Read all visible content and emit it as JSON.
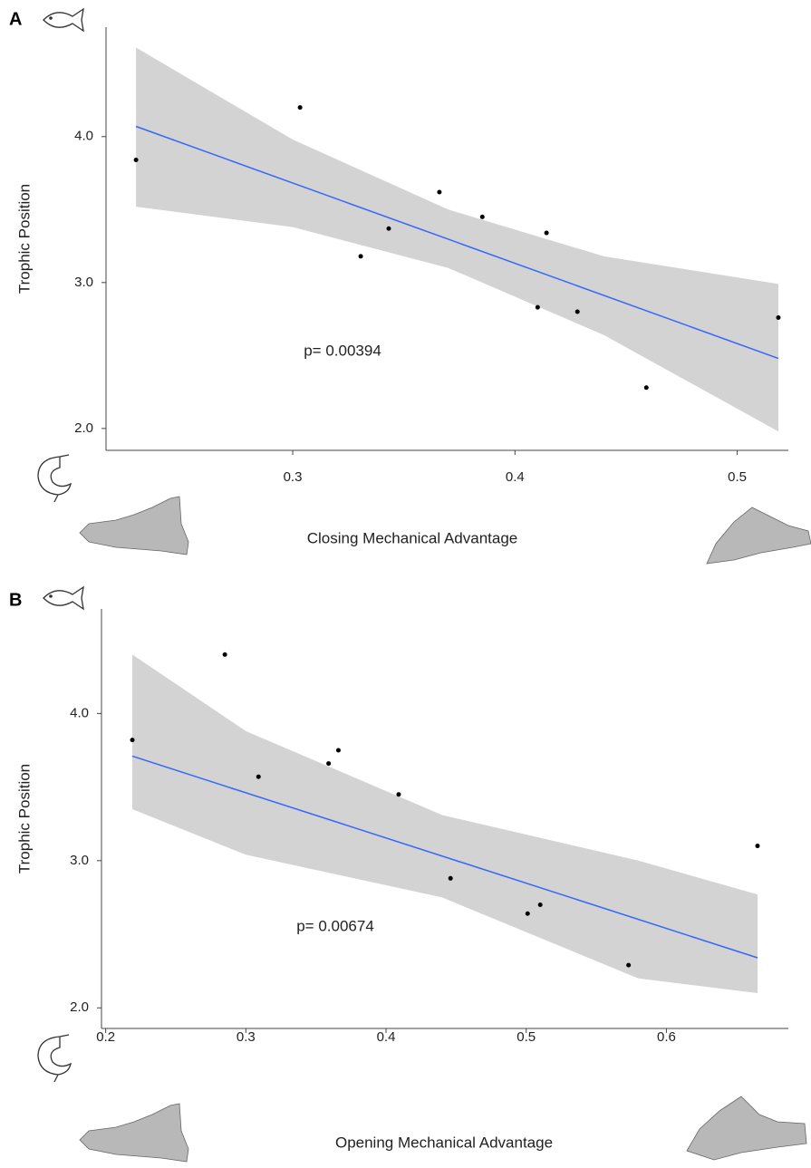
{
  "chart_data": [
    {
      "type": "scatter",
      "panel": "A",
      "x_label": "Closing Mechanical Advantage",
      "y_label": "Trophic Position",
      "annotation": "p= 0.00394",
      "x": [
        0.2295,
        0.3033,
        0.3306,
        0.3432,
        0.366,
        0.3853,
        0.4142,
        0.4102,
        0.4281,
        0.4591,
        0.5185
      ],
      "values": [
        3.84,
        4.2,
        3.18,
        3.37,
        3.62,
        3.45,
        3.34,
        2.83,
        2.8,
        2.28,
        2.76
      ],
      "color": "#000000",
      "fit": {
        "x": [
          0.2295,
          0.5185
        ],
        "y": [
          4.07,
          2.48
        ],
        "color": "#3366ff"
      },
      "band": {
        "x": [
          0.2295,
          0.3,
          0.37,
          0.44,
          0.5185
        ],
        "upper": [
          4.61,
          3.98,
          3.5,
          3.18,
          2.99
        ],
        "lower": [
          3.52,
          3.38,
          3.1,
          2.64,
          1.98
        ],
        "color": "#d3d3d3"
      },
      "xlim": [
        0.216,
        0.523
      ],
      "ylim": [
        1.85,
        4.75
      ],
      "xticks": [
        0.3,
        0.4,
        0.5
      ],
      "yticks": [
        {
          "value": 2,
          "label": "2.0"
        },
        {
          "value": 3,
          "label": "3.0"
        },
        {
          "value": 4,
          "label": "4.0"
        }
      ]
    },
    {
      "type": "scatter",
      "panel": "B",
      "x_label": "Opening Mechanical Advantage",
      "y_label": "Trophic Position",
      "annotation": "p= 0.00674",
      "x": [
        0.219,
        0.285,
        0.309,
        0.359,
        0.366,
        0.409,
        0.446,
        0.501,
        0.51,
        0.573,
        0.665
      ],
      "values": [
        3.82,
        4.4,
        3.57,
        3.66,
        3.75,
        3.45,
        2.88,
        2.64,
        2.7,
        2.29,
        3.1
      ],
      "color": "#000000",
      "fit": {
        "x": [
          0.219,
          0.665
        ],
        "y": [
          3.71,
          2.34
        ],
        "color": "#3366ff"
      },
      "band": {
        "x": [
          0.219,
          0.3,
          0.44,
          0.58,
          0.665
        ],
        "upper": [
          4.4,
          3.88,
          3.31,
          3.0,
          2.77
        ],
        "lower": [
          3.35,
          3.04,
          2.75,
          2.2,
          2.1
        ],
        "color": "#d3d3d3"
      },
      "xlim": [
        0.197,
        0.687
      ],
      "ylim": [
        1.86,
        4.71
      ],
      "xticks": [
        0.2,
        0.3,
        0.4,
        0.5,
        0.6
      ],
      "yticks": [
        {
          "value": 2,
          "label": "2.0"
        },
        {
          "value": 3,
          "label": "3.0"
        },
        {
          "value": 4,
          "label": "4.0"
        }
      ]
    }
  ]
}
